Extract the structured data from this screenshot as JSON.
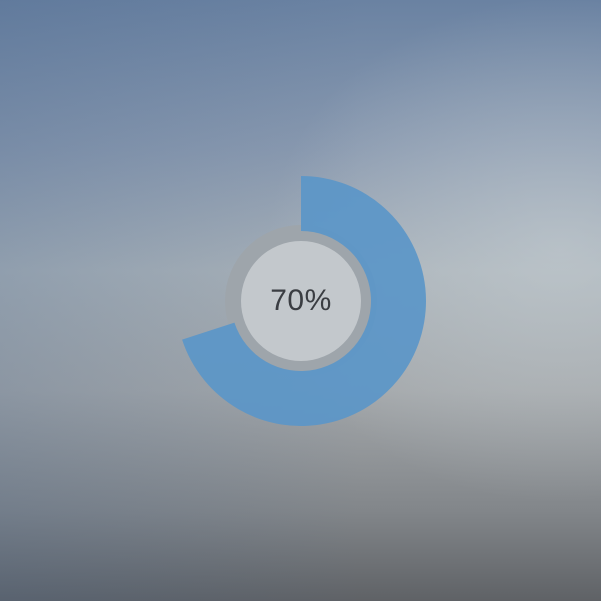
{
  "progress": {
    "value": 0.7,
    "label": "70%"
  },
  "colors": {
    "arc": "#5b96c8",
    "inner_ring": "#9ea5ab",
    "inner_disc": "#c3c8cc",
    "label_text": "#3a3d42"
  }
}
